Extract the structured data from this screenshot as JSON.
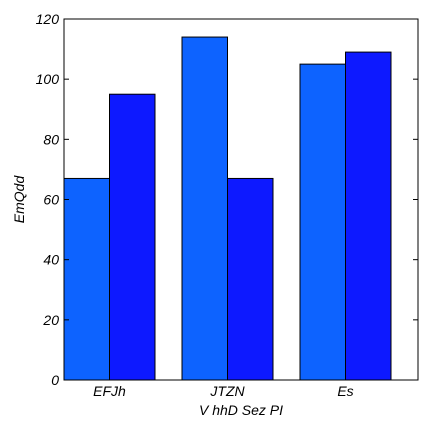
{
  "chart_data": {
    "type": "bar",
    "title": "",
    "xlabel": "V hhD Sez PI",
    "ylabel": "EmQdd",
    "categories": [
      "EFJh",
      "JTZN",
      "Es"
    ],
    "series": [
      {
        "values": [
          67,
          114,
          105
        ],
        "color": "#0d63ff"
      },
      {
        "values": [
          95,
          67,
          109
        ],
        "color": "#0d19ff"
      }
    ],
    "ylim": [
      0,
      120
    ],
    "yticks": [
      0,
      20,
      40,
      60,
      80,
      100,
      120
    ],
    "grid": false,
    "legend": "none"
  }
}
